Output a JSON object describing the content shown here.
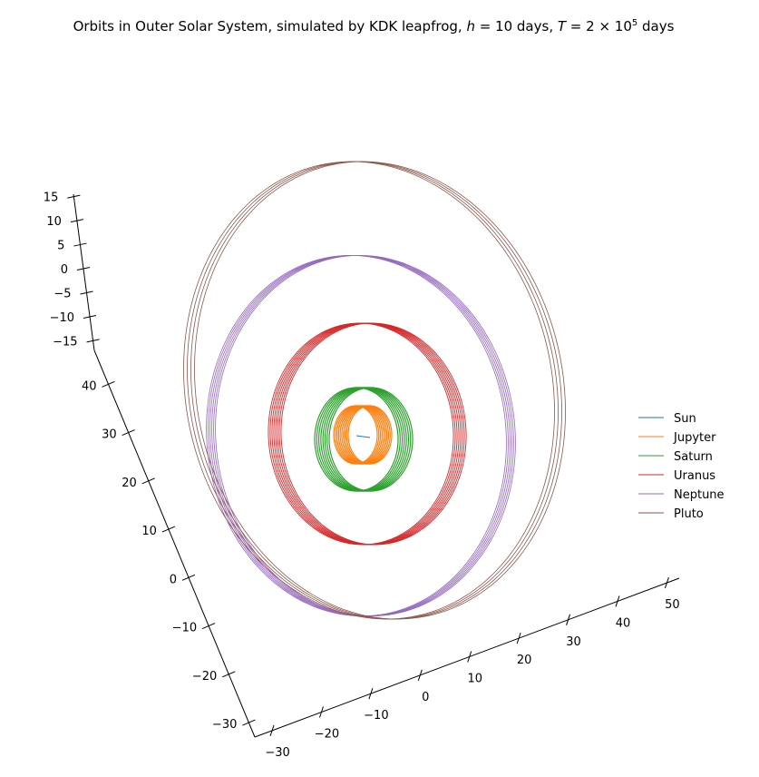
{
  "chart_data": {
    "type": "line3d",
    "title": {
      "prefix": "Orbits in Outer Solar System, simulated by KDK leapfrog, ",
      "h_symbol": "h",
      "h_rest": " = 10 days, ",
      "T_symbol": "T",
      "T_rest": " = 2 × 10",
      "T_exp": "5",
      "T_unit": " days"
    },
    "axes": {
      "x": {
        "ticks": [
          -30,
          -20,
          -10,
          0,
          10,
          20,
          30,
          40,
          50
        ],
        "tick_labels": [
          "−30",
          "−20",
          "−10",
          "0",
          "10",
          "20",
          "30",
          "40",
          "50"
        ]
      },
      "y": {
        "ticks": [
          -30,
          -20,
          -10,
          0,
          10,
          20,
          30,
          40
        ],
        "tick_labels": [
          "−30",
          "−20",
          "−10",
          "0",
          "10",
          "20",
          "30",
          "40"
        ]
      },
      "z": {
        "ticks": [
          -15,
          -10,
          -5,
          0,
          5,
          10,
          15
        ],
        "tick_labels": [
          "−15",
          "−10",
          "−5",
          "0",
          "5",
          "10",
          "15"
        ]
      }
    },
    "grid": false,
    "legend_position": "right",
    "series": [
      {
        "name": "Sun",
        "color": "#1f77b4",
        "semi_major_axis_au": 0.01,
        "eccentricity": 0.0,
        "loops": 1
      },
      {
        "name": "Jupyter",
        "color": "#ff7f0e",
        "semi_major_axis_au": 5.2,
        "eccentricity": 0.048,
        "loops": 10
      },
      {
        "name": "Saturn",
        "color": "#2ca02c",
        "semi_major_axis_au": 9.58,
        "eccentricity": 0.056,
        "loops": 8
      },
      {
        "name": "Uranus",
        "color": "#d62728",
        "semi_major_axis_au": 19.2,
        "eccentricity": 0.046,
        "loops": 8
      },
      {
        "name": "Neptune",
        "color": "#9467bd",
        "semi_major_axis_au": 30.07,
        "eccentricity": 0.01,
        "loops": 6
      },
      {
        "name": "Pluto",
        "color": "#8c564b",
        "semi_major_axis_au": 39.48,
        "eccentricity": 0.25,
        "loops": 4
      }
    ]
  }
}
